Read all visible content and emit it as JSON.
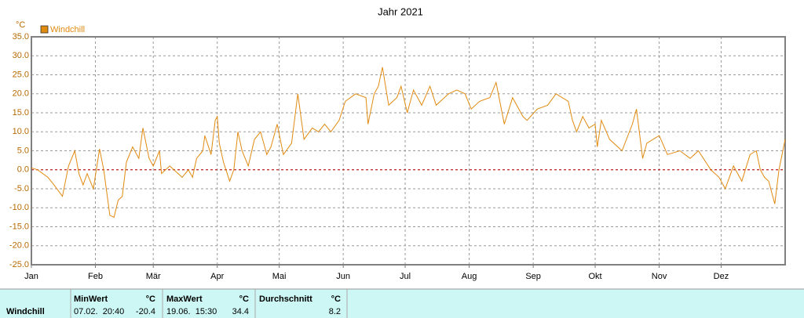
{
  "chart_data": {
    "type": "line",
    "title": "Jahr 2021",
    "y_unit": "°C",
    "x": [
      0,
      3,
      8,
      11,
      15,
      18,
      21,
      23,
      25,
      27,
      30,
      33,
      35,
      38,
      40,
      42,
      44,
      46,
      49,
      52,
      54,
      57,
      59,
      62,
      63,
      67,
      69,
      73,
      76,
      78,
      80,
      83,
      84,
      87,
      89,
      90,
      91,
      93,
      96,
      98,
      100,
      102,
      105,
      108,
      111,
      114,
      116,
      119,
      122,
      126,
      129,
      132,
      136,
      139,
      142,
      145,
      149,
      152,
      157,
      162,
      163,
      166,
      168,
      170,
      173,
      177,
      179,
      182,
      185,
      189,
      193,
      196,
      202,
      206,
      210,
      213,
      217,
      222,
      225,
      229,
      233,
      238,
      240,
      245,
      250,
      254,
      260,
      262,
      264,
      267,
      270,
      273,
      274,
      276,
      280,
      286,
      291,
      293,
      296,
      298,
      304,
      308,
      314,
      319,
      323,
      329,
      333,
      336,
      340,
      344,
      348,
      351,
      353,
      355,
      357,
      360,
      362,
      365
    ],
    "series": [
      {
        "name": "Windchill",
        "color": "#e08a10",
        "values": [
          0.5,
          0,
          -2,
          -4,
          -7,
          1,
          5,
          -1,
          -4,
          -1,
          -5,
          5.5,
          0,
          -12,
          -12.5,
          -8,
          -7,
          2,
          6,
          3,
          11,
          3,
          1,
          5,
          -1,
          1,
          0,
          -2,
          0,
          -2,
          3,
          5,
          9,
          4,
          13,
          14,
          7,
          2,
          -3,
          0,
          10,
          5,
          1,
          8,
          10,
          4,
          6,
          12,
          4,
          7,
          20,
          8,
          11,
          10,
          12,
          10,
          13,
          18,
          20,
          19,
          12,
          20,
          22,
          27,
          17,
          19,
          22,
          15,
          21,
          17,
          22,
          17,
          20,
          21,
          20,
          16,
          18,
          19,
          23,
          12,
          19,
          14,
          13,
          16,
          17,
          20,
          18,
          13,
          10,
          14,
          11,
          12,
          6,
          13,
          8,
          5,
          12,
          16,
          3,
          7,
          9,
          4,
          5,
          3,
          5,
          0,
          -2,
          -5,
          1,
          -3,
          4,
          5,
          0,
          -2,
          -3,
          -9,
          0,
          8
        ]
      }
    ],
    "xlim": [
      0,
      365
    ],
    "xticks": [
      {
        "value": 0,
        "label": "Jan"
      },
      {
        "value": 31,
        "label": "Feb"
      },
      {
        "value": 59,
        "label": "Mär"
      },
      {
        "value": 90,
        "label": "Apr"
      },
      {
        "value": 120,
        "label": "Mai"
      },
      {
        "value": 151,
        "label": "Jun"
      },
      {
        "value": 181,
        "label": "Jul"
      },
      {
        "value": 212,
        "label": "Aug"
      },
      {
        "value": 243,
        "label": "Sep"
      },
      {
        "value": 273,
        "label": "Okt"
      },
      {
        "value": 304,
        "label": "Nov"
      },
      {
        "value": 334,
        "label": "Dez"
      }
    ],
    "ylim": [
      -25,
      35
    ],
    "yticks": [
      {
        "value": 35,
        "label": "35.0"
      },
      {
        "value": 30,
        "label": "30.0"
      },
      {
        "value": 25,
        "label": "25.0"
      },
      {
        "value": 20,
        "label": "20.0"
      },
      {
        "value": 15,
        "label": "15.0"
      },
      {
        "value": 10,
        "label": "10.0"
      },
      {
        "value": 5,
        "label": "5.0"
      },
      {
        "value": 0,
        "label": "0.0"
      },
      {
        "value": -5,
        "label": "-5.0"
      },
      {
        "value": -10,
        "label": "-10.0"
      },
      {
        "value": -15,
        "label": "-15.0"
      },
      {
        "value": -20,
        "label": "-20.0"
      },
      {
        "value": -25,
        "label": "-25.0"
      }
    ],
    "grid": true,
    "zero_line": true,
    "legend": "top-left"
  },
  "table": {
    "header": [
      "MinWert",
      "°C",
      "MaxWert",
      "°C",
      "Durchschnitt",
      "°C"
    ],
    "rows": [
      [
        "Windchill",
        "07.02.  20:40",
        "-20.4",
        "19.06.  15:30",
        "34.4",
        "8.2"
      ]
    ]
  }
}
